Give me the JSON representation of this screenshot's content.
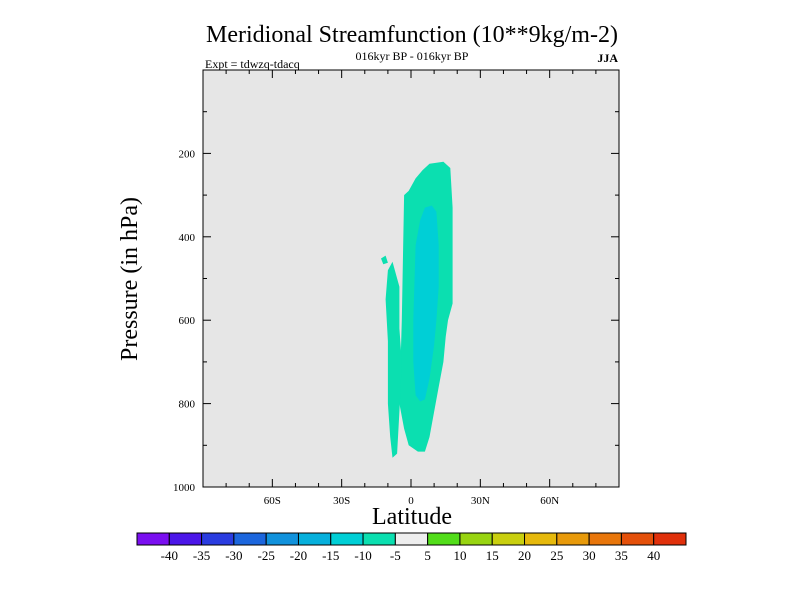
{
  "chart_data": {
    "type": "heatmap",
    "title": "Meridional Streamfunction (10**9kg/m-2)",
    "subtitle": "016kyr BP - 016kyr BP",
    "left_label": "Expt = tdwzq-tdacq",
    "season": "JJA",
    "xlabel": "Latitude",
    "ylabel": "Pressure (in hPa)",
    "xlim": [
      -90,
      90
    ],
    "ylim": [
      1000,
      0
    ],
    "x_ticks": [
      {
        "value": -60,
        "label": "60S"
      },
      {
        "value": -30,
        "label": "30S"
      },
      {
        "value": 0,
        "label": "0"
      },
      {
        "value": 30,
        "label": "30N"
      },
      {
        "value": 60,
        "label": "60N"
      }
    ],
    "y_ticks": [
      {
        "value": 200,
        "label": "200"
      },
      {
        "value": 400,
        "label": "400"
      },
      {
        "value": 600,
        "label": "600"
      },
      {
        "value": 800,
        "label": "800"
      },
      {
        "value": 1000,
        "label": "1000"
      }
    ],
    "background_color": "#e6e6e6",
    "colorbar": {
      "labels": [
        "-40",
        "-35",
        "-30",
        "-25",
        "-20",
        "-15",
        "-10",
        "-5",
        "5",
        "10",
        "15",
        "20",
        "25",
        "30",
        "35",
        "40"
      ],
      "colors": [
        "#7a0ff0",
        "#4b16e8",
        "#2a3ce0",
        "#1c66dd",
        "#1192dc",
        "#06b0dc",
        "#00cfd6",
        "#0bdfb0",
        "#eeeeee",
        "#52dd1a",
        "#98d411",
        "#c9cf0f",
        "#e6b90c",
        "#e89a0b",
        "#e8760b",
        "#e4500a",
        "#e0300b"
      ]
    },
    "regions": [
      {
        "level": "-10 to -5",
        "color": "#0bdfb0",
        "outline": [
          [
            14,
            220
          ],
          [
            17,
            235
          ],
          [
            18,
            330
          ],
          [
            18,
            560
          ],
          [
            16,
            600
          ],
          [
            15,
            640
          ],
          [
            14,
            700
          ],
          [
            12,
            760
          ],
          [
            10,
            820
          ],
          [
            8,
            880
          ],
          [
            6,
            915
          ],
          [
            3,
            915
          ],
          [
            -1,
            900
          ],
          [
            -3,
            860
          ],
          [
            -5,
            800
          ],
          [
            -4,
            600
          ],
          [
            -3,
            300
          ],
          [
            -1,
            290
          ],
          [
            2,
            260
          ],
          [
            5,
            240
          ],
          [
            8,
            225
          ]
        ]
      },
      {
        "level": "-10 to -5",
        "color": "#0bdfb0",
        "outline": [
          [
            -5,
            520
          ],
          [
            -5,
            620
          ],
          [
            -4,
            700
          ],
          [
            -5,
            820
          ],
          [
            -6,
            920
          ],
          [
            -8,
            930
          ],
          [
            -9,
            880
          ],
          [
            -10,
            800
          ],
          [
            -10,
            650
          ],
          [
            -11,
            550
          ],
          [
            -10,
            480
          ],
          [
            -8,
            460
          ]
        ]
      },
      {
        "level": "-10 to -5",
        "color": "#0bdfb0",
        "outline": [
          [
            -11,
            445
          ],
          [
            -10,
            462
          ],
          [
            -12,
            466
          ],
          [
            -13,
            452
          ]
        ]
      },
      {
        "level": "-15 to -10",
        "color": "#00cfd6",
        "outline": [
          [
            9,
            325
          ],
          [
            11,
            340
          ],
          [
            12,
            420
          ],
          [
            12,
            520
          ],
          [
            11,
            600
          ],
          [
            10,
            660
          ],
          [
            8,
            740
          ],
          [
            6,
            790
          ],
          [
            4,
            795
          ],
          [
            2,
            780
          ],
          [
            1,
            700
          ],
          [
            1,
            600
          ],
          [
            2,
            420
          ],
          [
            4,
            360
          ],
          [
            6,
            330
          ]
        ]
      }
    ]
  }
}
